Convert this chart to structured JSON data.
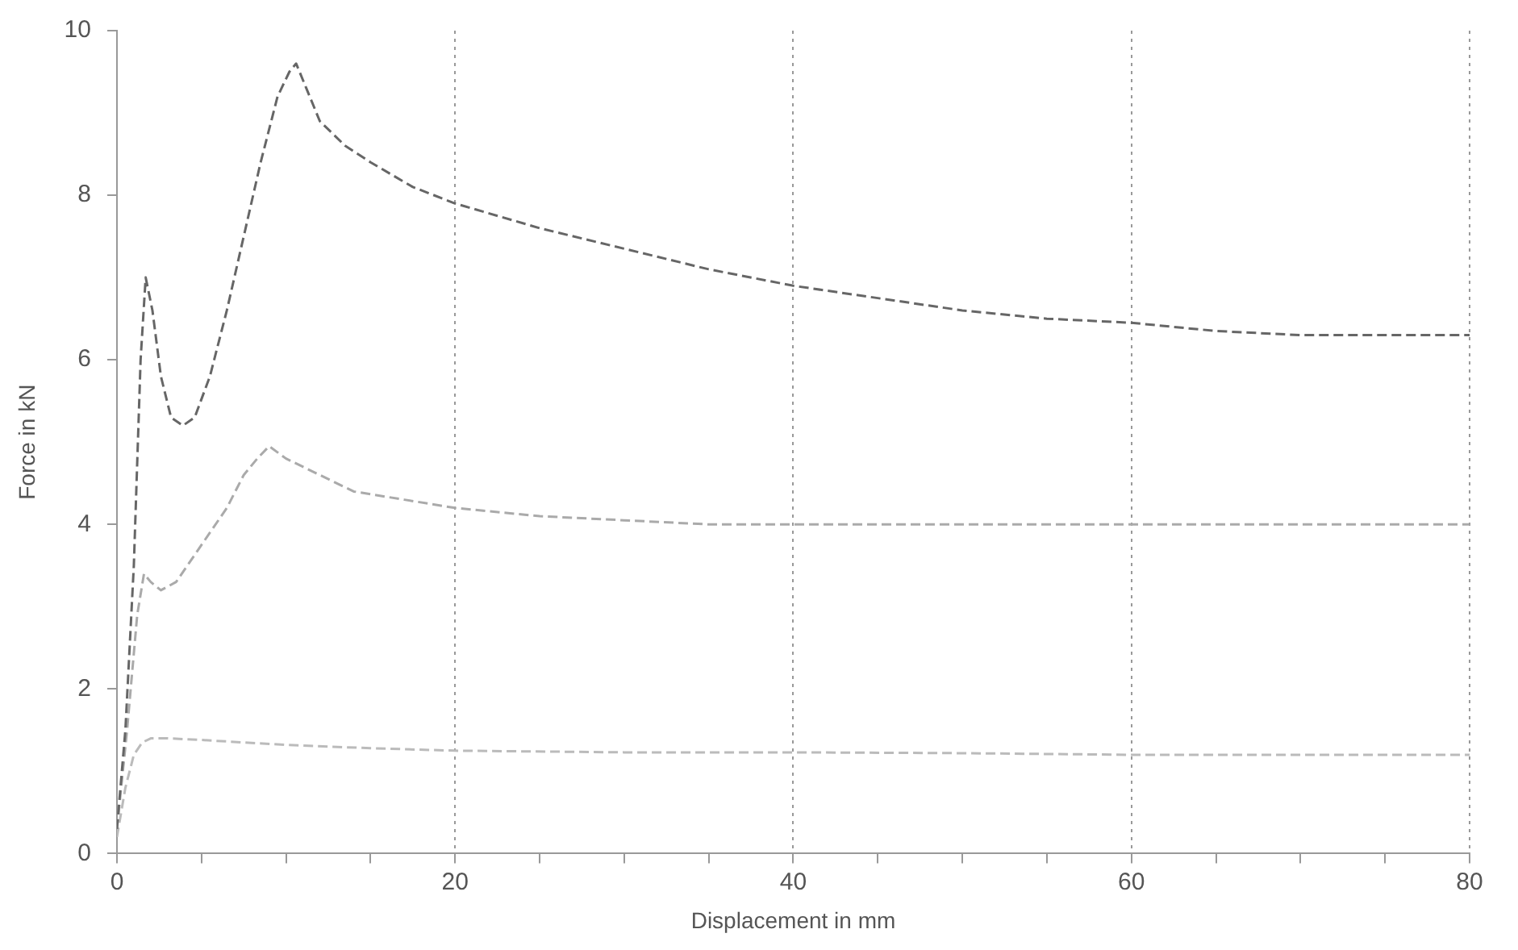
{
  "chart_data": {
    "type": "line",
    "xlabel": "Displacement in mm",
    "ylabel": "Force in kN",
    "xlim": [
      0,
      80
    ],
    "ylim": [
      0,
      10
    ],
    "xticks": [
      0,
      {
        "value": 5,
        "label": null
      },
      {
        "value": 10,
        "label": null
      },
      {
        "value": 15,
        "label": null
      },
      20,
      {
        "value": 25,
        "label": null
      },
      {
        "value": 30,
        "label": null
      },
      {
        "value": 35,
        "label": null
      },
      40,
      {
        "value": 45,
        "label": null
      },
      {
        "value": 50,
        "label": null
      },
      {
        "value": 55,
        "label": null
      },
      60,
      {
        "value": 65,
        "label": null
      },
      {
        "value": 70,
        "label": null
      },
      {
        "value": 75,
        "label": null
      },
      80
    ],
    "yticks": [
      0,
      2,
      4,
      6,
      8,
      10
    ],
    "grid": "x",
    "legend": false,
    "marker": "none",
    "line_style": "dashed",
    "series": [
      {
        "color": "#666666",
        "x": [
          0,
          0.5,
          1,
          1.4,
          1.7,
          2.1,
          2.6,
          3.2,
          3.9,
          4.6,
          5.5,
          6.5,
          7.5,
          8.5,
          9.5,
          10.2,
          10.6,
          11.2,
          12,
          13.5,
          15,
          17.5,
          20,
          25,
          30,
          35,
          40,
          45,
          50,
          55,
          60,
          65,
          70,
          75,
          80
        ],
        "values": [
          0.3,
          1.5,
          3.5,
          6.0,
          7.0,
          6.6,
          5.8,
          5.3,
          5.2,
          5.3,
          5.8,
          6.6,
          7.5,
          8.4,
          9.2,
          9.5,
          9.6,
          9.3,
          8.9,
          8.6,
          8.4,
          8.1,
          7.9,
          7.6,
          7.35,
          7.1,
          6.9,
          6.75,
          6.6,
          6.5,
          6.45,
          6.35,
          6.3,
          6.3,
          6.3
        ]
      },
      {
        "color": "#aaaaaa",
        "x": [
          0,
          0.6,
          1.2,
          1.6,
          2.0,
          2.6,
          3.5,
          4.5,
          5.5,
          6.5,
          7.5,
          8.3,
          9.0,
          10,
          12,
          14,
          17,
          20,
          25,
          30,
          35,
          40,
          50,
          60,
          70,
          80
        ],
        "values": [
          0.3,
          1.5,
          2.9,
          3.4,
          3.3,
          3.2,
          3.3,
          3.6,
          3.9,
          4.2,
          4.6,
          4.8,
          4.95,
          4.8,
          4.6,
          4.4,
          4.3,
          4.2,
          4.1,
          4.05,
          4.0,
          4.0,
          4.0,
          4.0,
          4.0,
          4.0
        ]
      },
      {
        "color": "#bbbbbb",
        "x": [
          0,
          0.5,
          1,
          1.5,
          2,
          3,
          5,
          10,
          15,
          20,
          30,
          40,
          50,
          60,
          70,
          80
        ],
        "values": [
          0.2,
          0.8,
          1.2,
          1.35,
          1.4,
          1.4,
          1.38,
          1.32,
          1.28,
          1.25,
          1.23,
          1.23,
          1.22,
          1.2,
          1.2,
          1.2
        ]
      }
    ]
  }
}
